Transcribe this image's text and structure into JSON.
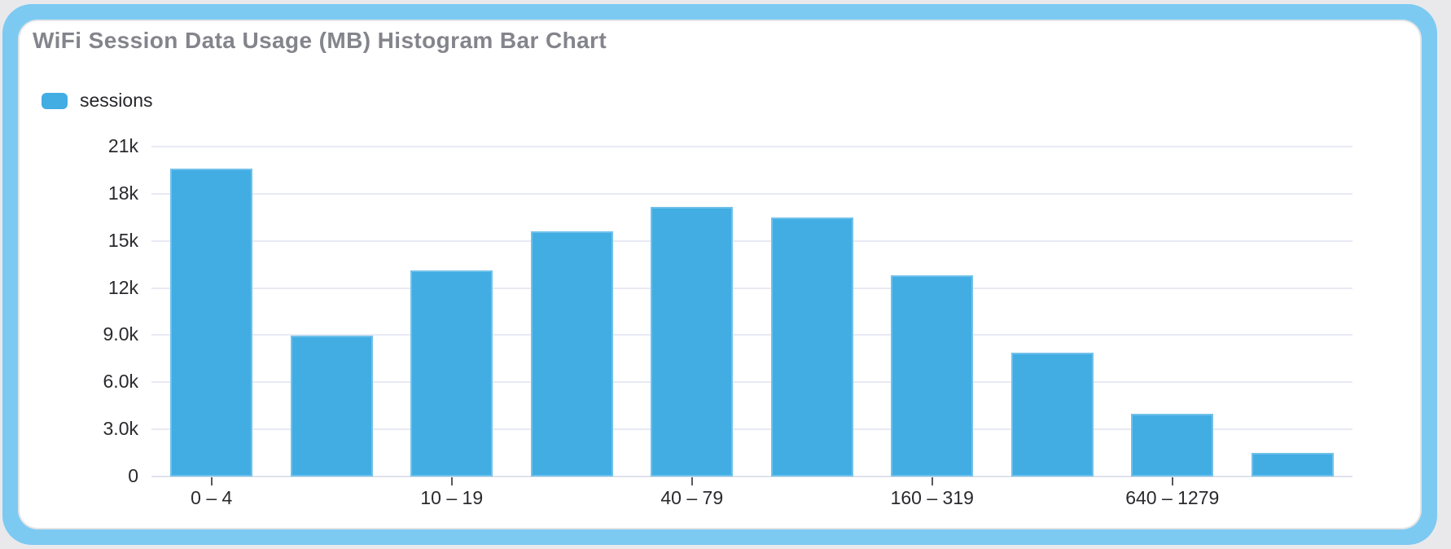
{
  "theme": {
    "page_background": "#e9e9eb",
    "card_frame_color": "#7ccaf2",
    "card_background": "#ffffff",
    "card_sketch_line_color": "#e4e4e6",
    "title_color": "#84848c"
  },
  "chart": {
    "title": "WiFi Session Data Usage (MB) Histogram Bar Chart"
  },
  "legend": {
    "label": "sessions",
    "swatch_color": "#41ade3"
  },
  "chart_data": {
    "type": "bar",
    "title": "WiFi Session Data Usage (MB) Histogram Bar Chart",
    "categories": [
      "0 – 4",
      "",
      "10 – 19",
      "",
      "40 – 79",
      "",
      "160 – 319",
      "",
      "640 – 1279",
      ""
    ],
    "x_label_interval": 2,
    "series": [
      {
        "name": "sessions",
        "values": [
          19600,
          8950,
          13100,
          15600,
          17150,
          16500,
          12800,
          7900,
          4000,
          1500
        ]
      }
    ],
    "ylim": [
      0,
      21000
    ],
    "y_ticks": {
      "values": [
        0,
        3000,
        6000,
        9000,
        12000,
        15000,
        18000,
        21000
      ],
      "labels": [
        "0",
        "3.0k",
        "6.0k",
        "9.0k",
        "12k",
        "15k",
        "18k",
        "21k"
      ]
    },
    "xlabel": "",
    "ylabel": "",
    "grid": true,
    "legend_position": "top-left",
    "bar_color": "#41ade3",
    "gridline_color": "#e8eaf4",
    "axis_line_color": "#dfe2ec",
    "tick_color": "#55585f",
    "axis_text_color": "#2a2a2e"
  }
}
